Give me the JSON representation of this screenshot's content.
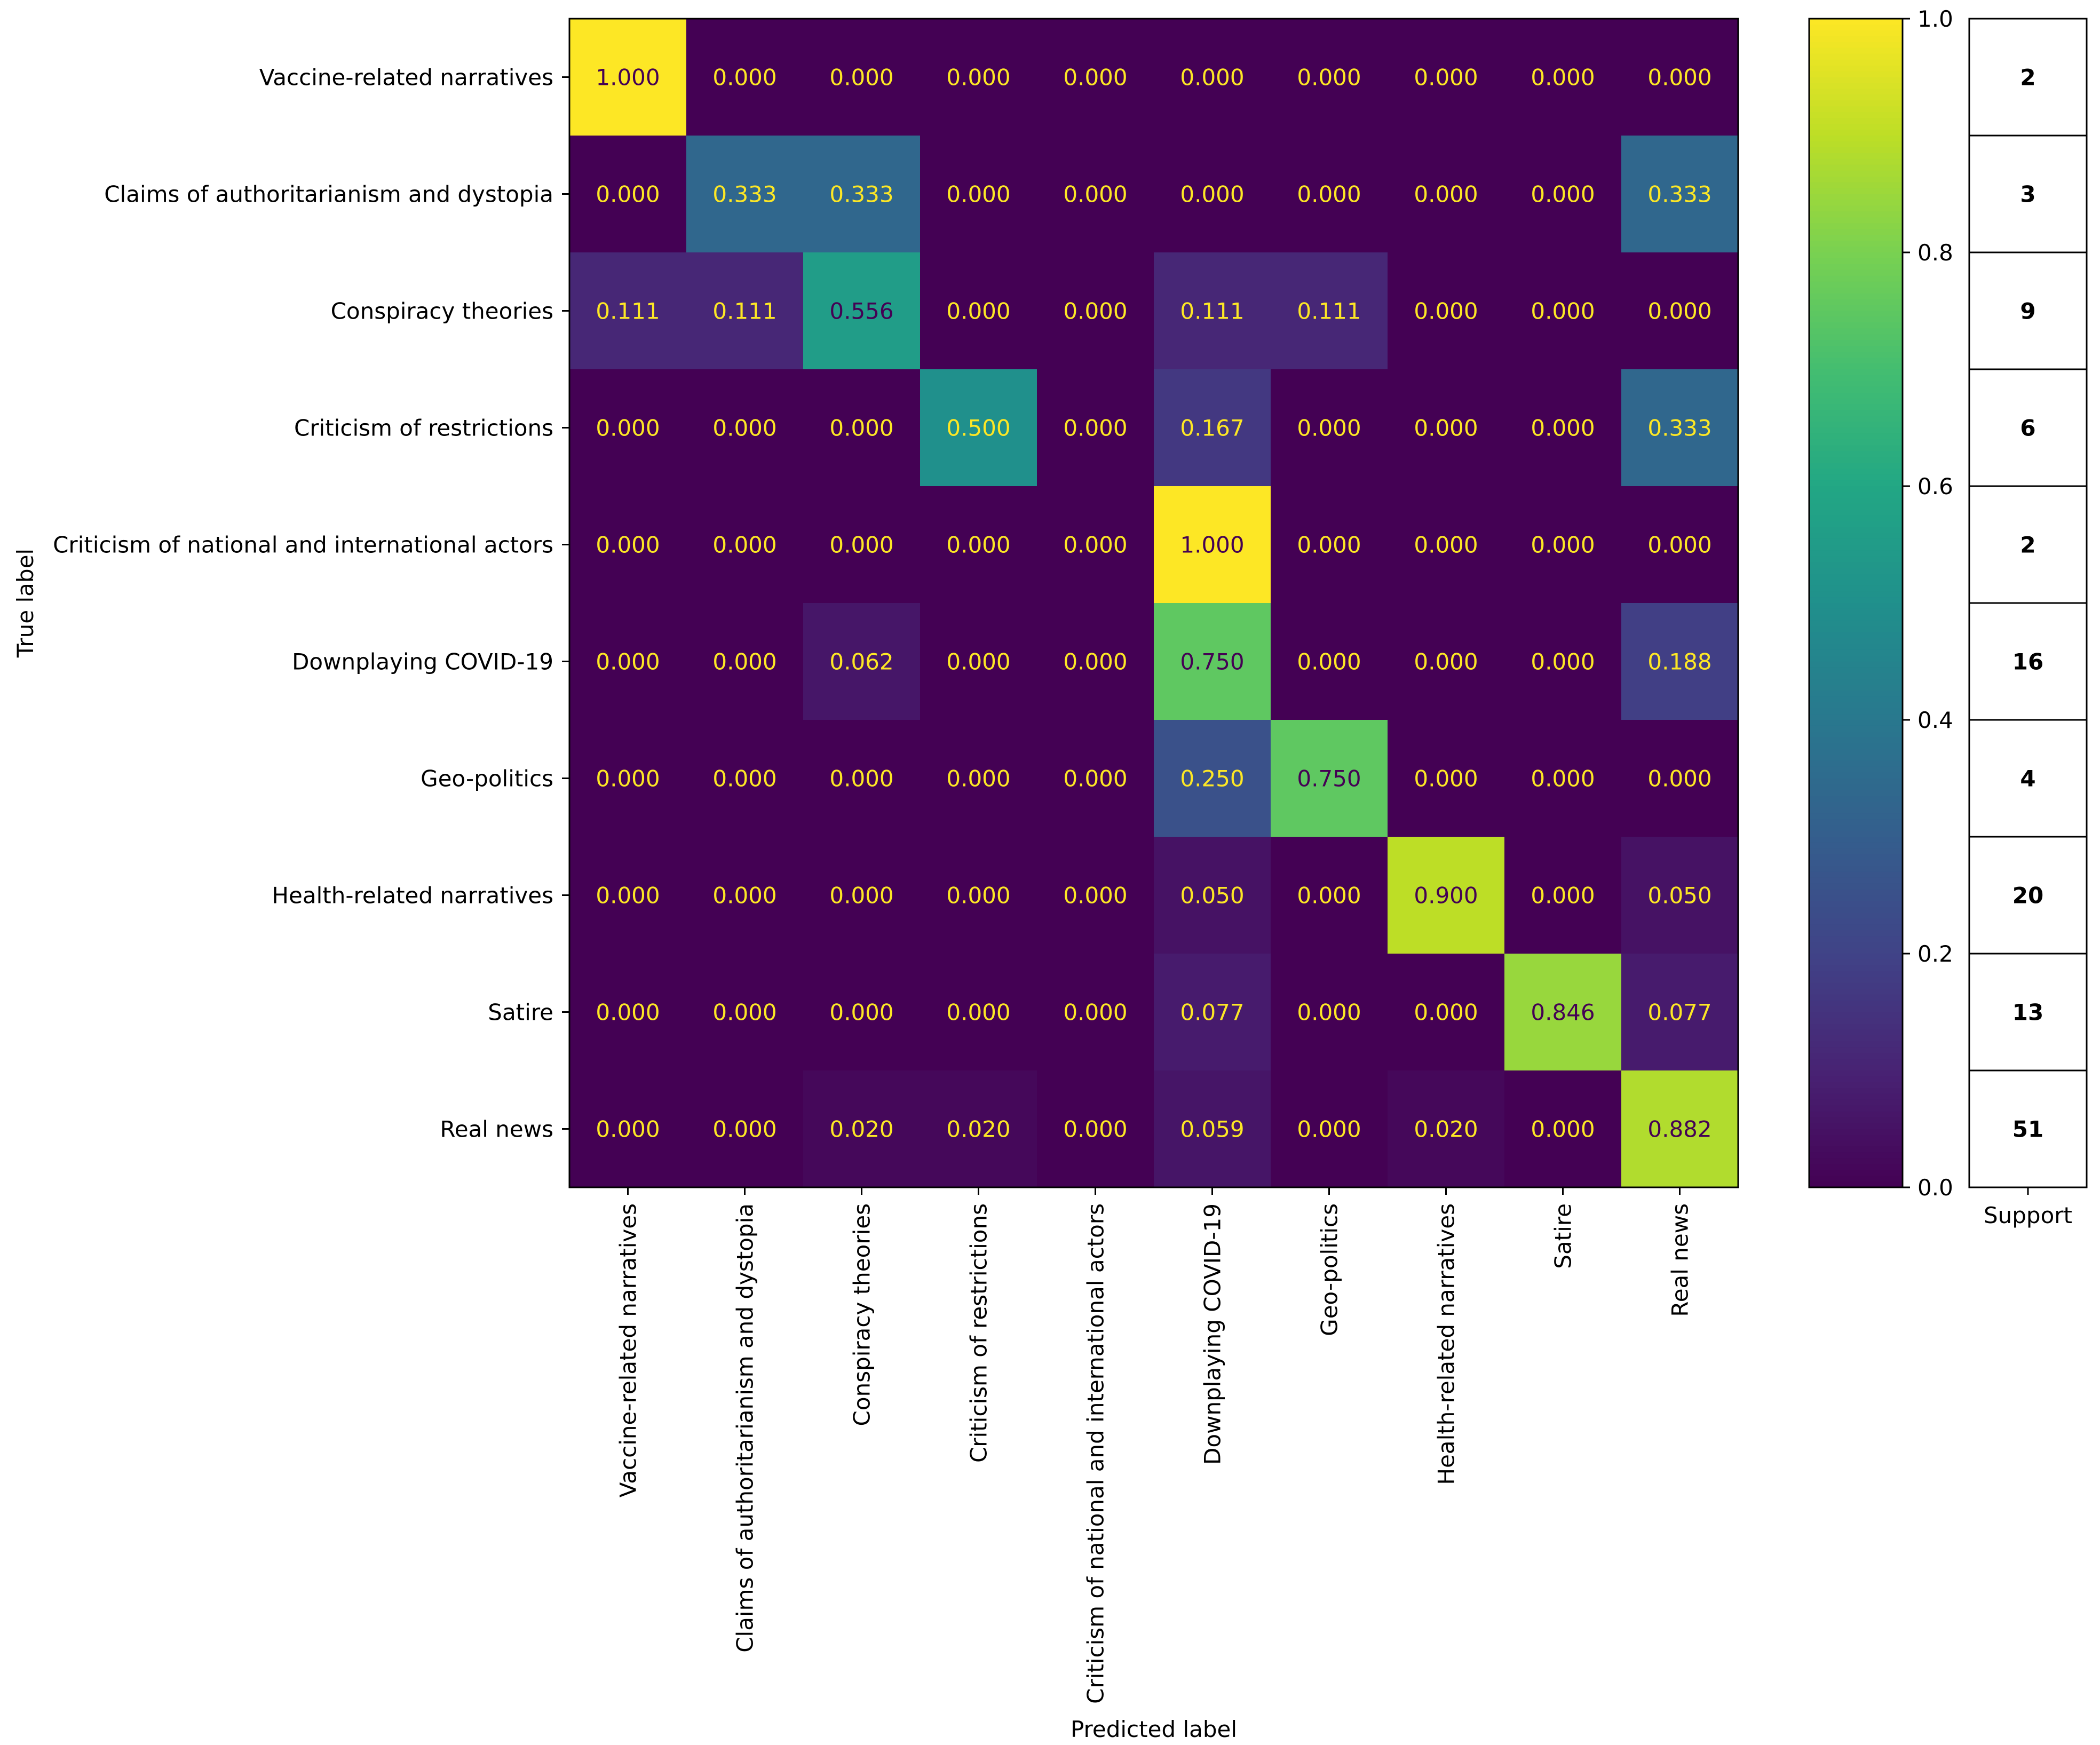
{
  "chart_data": {
    "type": "heatmap",
    "title": "",
    "xlabel": "Predicted label",
    "ylabel": "True label",
    "categories": [
      "Vaccine-related narratives",
      "Claims of authoritarianism and dystopia",
      "Conspiracy theories",
      "Criticism of restrictions",
      "Criticism of national and international actors",
      "Downplaying COVID-19",
      "Geo-politics",
      "Health-related narratives",
      "Satire",
      "Real news"
    ],
    "values": [
      [
        1.0,
        0.0,
        0.0,
        0.0,
        0.0,
        0.0,
        0.0,
        0.0,
        0.0,
        0.0
      ],
      [
        0.0,
        0.333,
        0.333,
        0.0,
        0.0,
        0.0,
        0.0,
        0.0,
        0.0,
        0.333
      ],
      [
        0.111,
        0.111,
        0.556,
        0.0,
        0.0,
        0.111,
        0.111,
        0.0,
        0.0,
        0.0
      ],
      [
        0.0,
        0.0,
        0.0,
        0.5,
        0.0,
        0.167,
        0.0,
        0.0,
        0.0,
        0.333
      ],
      [
        0.0,
        0.0,
        0.0,
        0.0,
        0.0,
        1.0,
        0.0,
        0.0,
        0.0,
        0.0
      ],
      [
        0.0,
        0.0,
        0.062,
        0.0,
        0.0,
        0.75,
        0.0,
        0.0,
        0.0,
        0.188
      ],
      [
        0.0,
        0.0,
        0.0,
        0.0,
        0.0,
        0.25,
        0.75,
        0.0,
        0.0,
        0.0
      ],
      [
        0.0,
        0.0,
        0.0,
        0.0,
        0.0,
        0.05,
        0.0,
        0.9,
        0.0,
        0.05
      ],
      [
        0.0,
        0.0,
        0.0,
        0.0,
        0.0,
        0.077,
        0.0,
        0.0,
        0.846,
        0.077
      ],
      [
        0.0,
        0.0,
        0.02,
        0.02,
        0.0,
        0.059,
        0.0,
        0.02,
        0.0,
        0.882
      ]
    ],
    "colorbar": {
      "range": [
        0.0,
        1.0
      ],
      "ticks": [
        "0.0",
        "0.2",
        "0.4",
        "0.6",
        "0.8",
        "1.0"
      ],
      "colormap": "viridis"
    },
    "support": {
      "label": "Support",
      "values": [
        2,
        3,
        9,
        6,
        2,
        16,
        4,
        20,
        13,
        51
      ]
    },
    "text_colors": {
      "dark_cell_text": "#fde725",
      "light_cell_text": "#440154"
    }
  }
}
